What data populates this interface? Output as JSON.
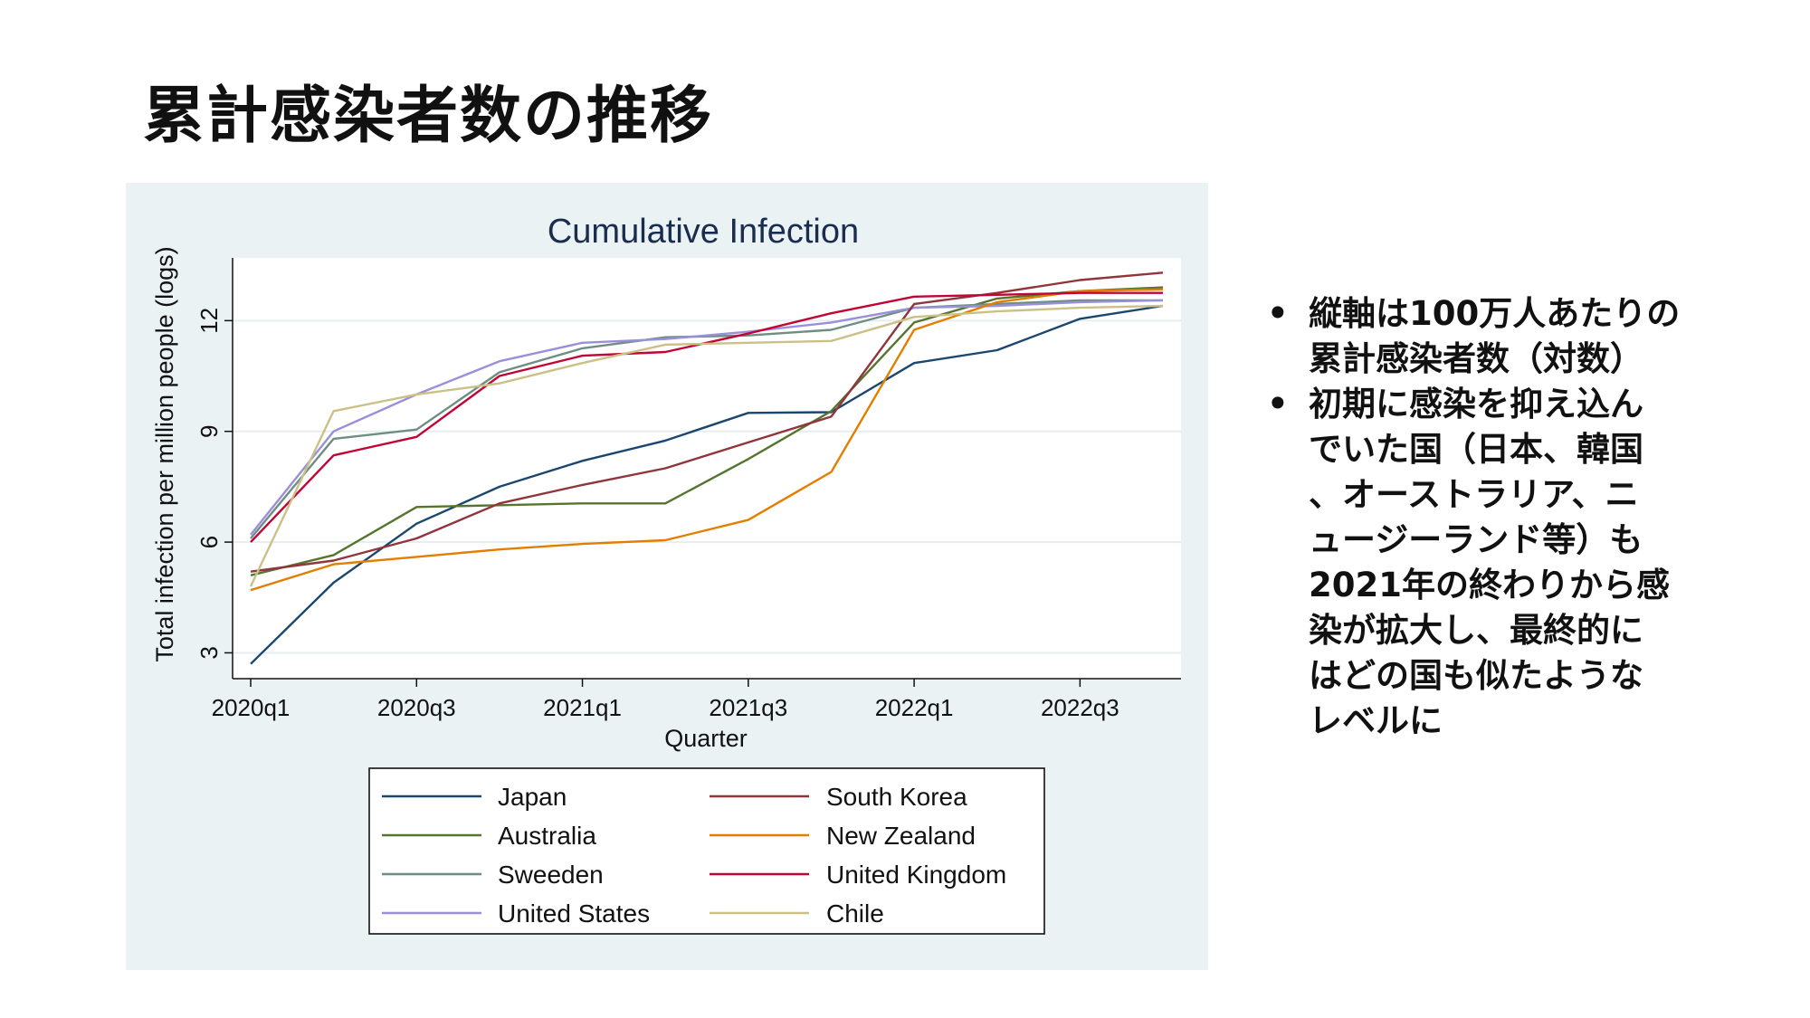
{
  "slide": {
    "title": "累計感染者数の推移",
    "bullets": [
      {
        "lines": [
          "縦軸は100万人あたりの",
          "累計感染者数（対数）"
        ]
      },
      {
        "lines": [
          "初期に感染を抑え込ん",
          "でいた国（日本、韓国",
          "、オーストラリア、ニ",
          "ュージーランド等）も",
          "2021年の終わりから感",
          "染が拡大し、最終的に",
          "はどの国も似たような",
          "レベルに"
        ]
      }
    ],
    "bullet_symbol": "•"
  },
  "chart_data": {
    "type": "line",
    "title": "Cumulative Infection",
    "xlabel": "Quarter",
    "ylabel": "Total infection per million people (logs)",
    "categories": [
      "2020q1",
      "2020q2",
      "2020q3",
      "2020q4",
      "2021q1",
      "2021q2",
      "2021q3",
      "2021q4",
      "2022q1",
      "2022q2",
      "2022q3",
      "2022q4"
    ],
    "x_tick_labels": [
      "2020q1",
      "2020q3",
      "2021q1",
      "2021q3",
      "2022q1",
      "2022q3"
    ],
    "y_ticks": [
      3,
      6,
      9,
      12
    ],
    "ylim": [
      2.3,
      13.7
    ],
    "grid": true,
    "legend_position": "bottom",
    "legend_columns": 2,
    "series": [
      {
        "name": "Japan",
        "color": "#1a476f",
        "values": [
          2.7,
          4.9,
          6.5,
          7.5,
          8.2,
          8.75,
          9.5,
          9.52,
          10.85,
          11.2,
          12.05,
          12.4
        ]
      },
      {
        "name": "Australia",
        "color": "#55752f",
        "values": [
          5.1,
          5.65,
          6.95,
          7.0,
          7.05,
          7.05,
          8.25,
          9.55,
          11.95,
          12.6,
          12.8,
          12.9
        ]
      },
      {
        "name": "Sweeden",
        "color": "#6e8e84",
        "values": [
          6.1,
          8.8,
          9.05,
          10.6,
          11.25,
          11.55,
          11.6,
          11.75,
          12.35,
          12.45,
          12.55,
          12.55
        ]
      },
      {
        "name": "United States",
        "color": "#9a8fd9",
        "values": [
          6.2,
          9.0,
          10.0,
          10.9,
          11.4,
          11.5,
          11.7,
          11.95,
          12.35,
          12.4,
          12.5,
          12.55
        ]
      },
      {
        "name": "South Korea",
        "color": "#90353b",
        "values": [
          5.2,
          5.5,
          6.1,
          7.05,
          7.55,
          8.0,
          8.7,
          9.4,
          12.45,
          12.75,
          13.1,
          13.3
        ]
      },
      {
        "name": "New Zealand",
        "color": "#e37e00",
        "values": [
          4.7,
          5.4,
          5.6,
          5.8,
          5.95,
          6.05,
          6.6,
          7.9,
          11.75,
          12.5,
          12.8,
          12.85
        ]
      },
      {
        "name": "United Kingdom",
        "color": "#c10534",
        "values": [
          6.0,
          8.35,
          8.85,
          10.5,
          11.05,
          11.15,
          11.65,
          12.2,
          12.65,
          12.7,
          12.75,
          12.75
        ]
      },
      {
        "name": "Chile",
        "color": "#cbc186",
        "values": [
          4.8,
          9.55,
          10.0,
          10.3,
          10.85,
          11.35,
          11.4,
          11.45,
          12.1,
          12.25,
          12.35,
          12.4
        ]
      }
    ]
  }
}
